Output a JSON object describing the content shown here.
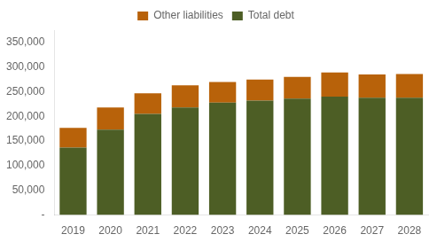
{
  "chart_data": {
    "type": "bar",
    "categories": [
      "2019",
      "2020",
      "2021",
      "2022",
      "2023",
      "2024",
      "2025",
      "2026",
      "2027",
      "2028"
    ],
    "series": [
      {
        "name": "Total debt",
        "color": "#4d5e25",
        "values": [
          137000,
          173000,
          205000,
          218000,
          228000,
          232000,
          236000,
          240000,
          238000,
          238000
        ]
      },
      {
        "name": "Other liabilities",
        "color": "#b8620a",
        "values": [
          40000,
          45000,
          42000,
          45000,
          42000,
          43000,
          44000,
          49000,
          47000,
          48000
        ]
      }
    ],
    "stacked": true,
    "ylim": [
      0,
      375000
    ],
    "yticks": [
      {
        "value": 0,
        "label": "-"
      },
      {
        "value": 50000,
        "label": "50,000"
      },
      {
        "value": 100000,
        "label": "100,000"
      },
      {
        "value": 150000,
        "label": "150,000"
      },
      {
        "value": 200000,
        "label": "200,000"
      },
      {
        "value": 250000,
        "label": "250,000"
      },
      {
        "value": 300000,
        "label": "300,000"
      },
      {
        "value": 350000,
        "label": "350,000"
      }
    ],
    "grid": false,
    "legend": "top"
  }
}
